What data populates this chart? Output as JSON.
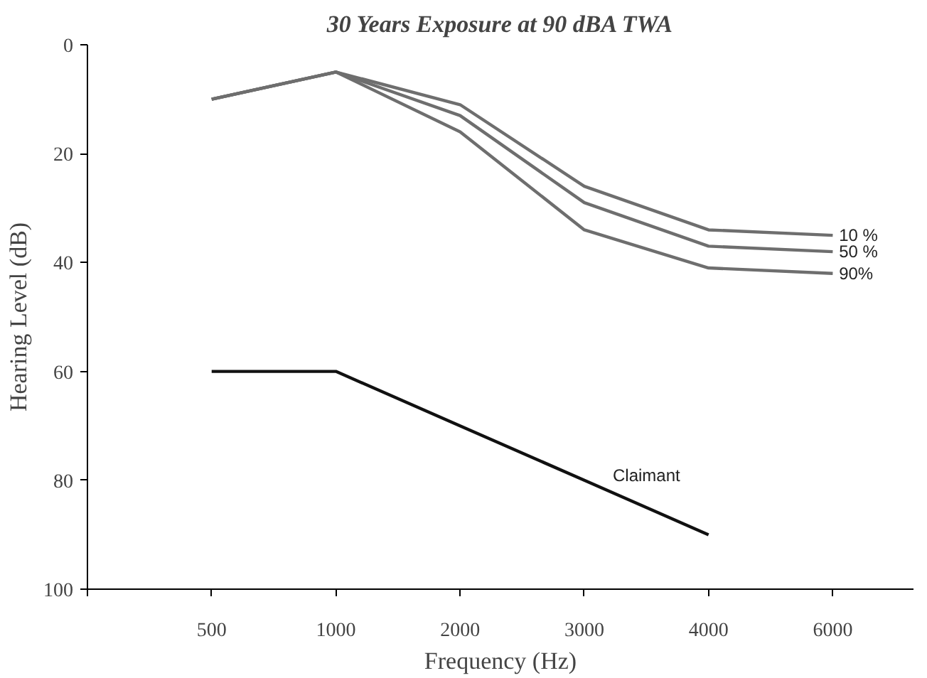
{
  "chart_data": {
    "type": "line",
    "title": "30 Years Exposure at 90 dBA TWA",
    "xlabel": "Frequency (Hz)",
    "ylabel": "Hearing Level (dB)",
    "categories": [
      "500",
      "1000",
      "2000",
      "3000",
      "4000",
      "6000"
    ],
    "series": [
      {
        "name": "10 %",
        "color": "#6e6e6e",
        "values": [
          10,
          5,
          11,
          26,
          34,
          35
        ]
      },
      {
        "name": "50 %",
        "color": "#6e6e6e",
        "values": [
          10,
          5,
          13,
          29,
          37,
          38
        ]
      },
      {
        "name": "90%",
        "color": "#6e6e6e",
        "values": [
          10,
          5,
          16,
          34,
          41,
          42
        ]
      },
      {
        "name": "Claimant",
        "color": "#111111",
        "values": [
          60,
          60,
          70,
          80,
          90,
          null
        ]
      }
    ],
    "ylim": [
      100,
      0
    ],
    "yticks": [
      0,
      20,
      40,
      60,
      80,
      100
    ],
    "grid": false,
    "legend": false,
    "marker": "none",
    "line_style": "solid"
  }
}
